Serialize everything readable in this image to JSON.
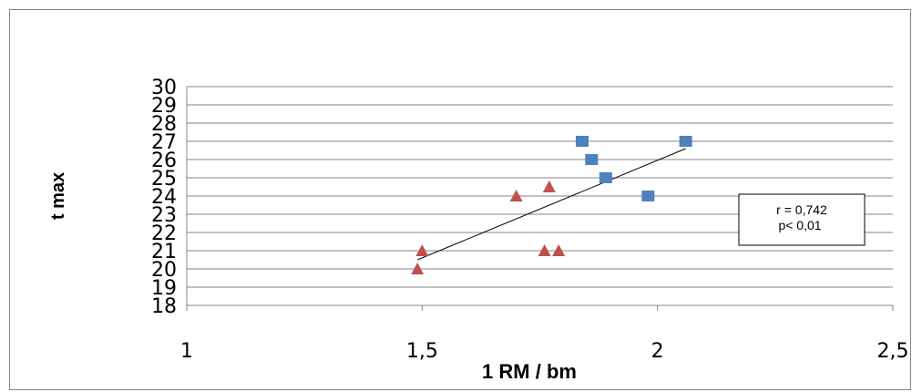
{
  "chart_data": {
    "type": "scatter",
    "title": "",
    "xlabel": "1 RM / bm",
    "ylabel": "t max",
    "xlim": [
      1,
      2.5
    ],
    "ylim": [
      18,
      30
    ],
    "x_ticks": [
      "1",
      "1,5",
      "2",
      "2,5"
    ],
    "y_ticks": [
      "18",
      "19",
      "20",
      "21",
      "22",
      "23",
      "24",
      "25",
      "26",
      "27",
      "28",
      "29",
      "30"
    ],
    "grid": "horizontal",
    "series": [
      {
        "marker": "square",
        "color": "#4F81BD",
        "points": [
          [
            1.84,
            27
          ],
          [
            1.86,
            26
          ],
          [
            1.89,
            25
          ],
          [
            1.98,
            24
          ],
          [
            2.06,
            27
          ]
        ]
      },
      {
        "marker": "triangle",
        "color": "#C0504D",
        "points": [
          [
            1.49,
            20
          ],
          [
            1.5,
            21
          ],
          [
            1.7,
            24
          ],
          [
            1.76,
            21
          ],
          [
            1.77,
            24.5
          ],
          [
            1.79,
            21
          ]
        ]
      }
    ],
    "trendline": {
      "from": [
        1.49,
        20.5
      ],
      "to": [
        2.06,
        26.6
      ],
      "color": "#000000"
    },
    "annotation": {
      "line1": "r = 0,742",
      "line2": "p< 0,01"
    }
  }
}
